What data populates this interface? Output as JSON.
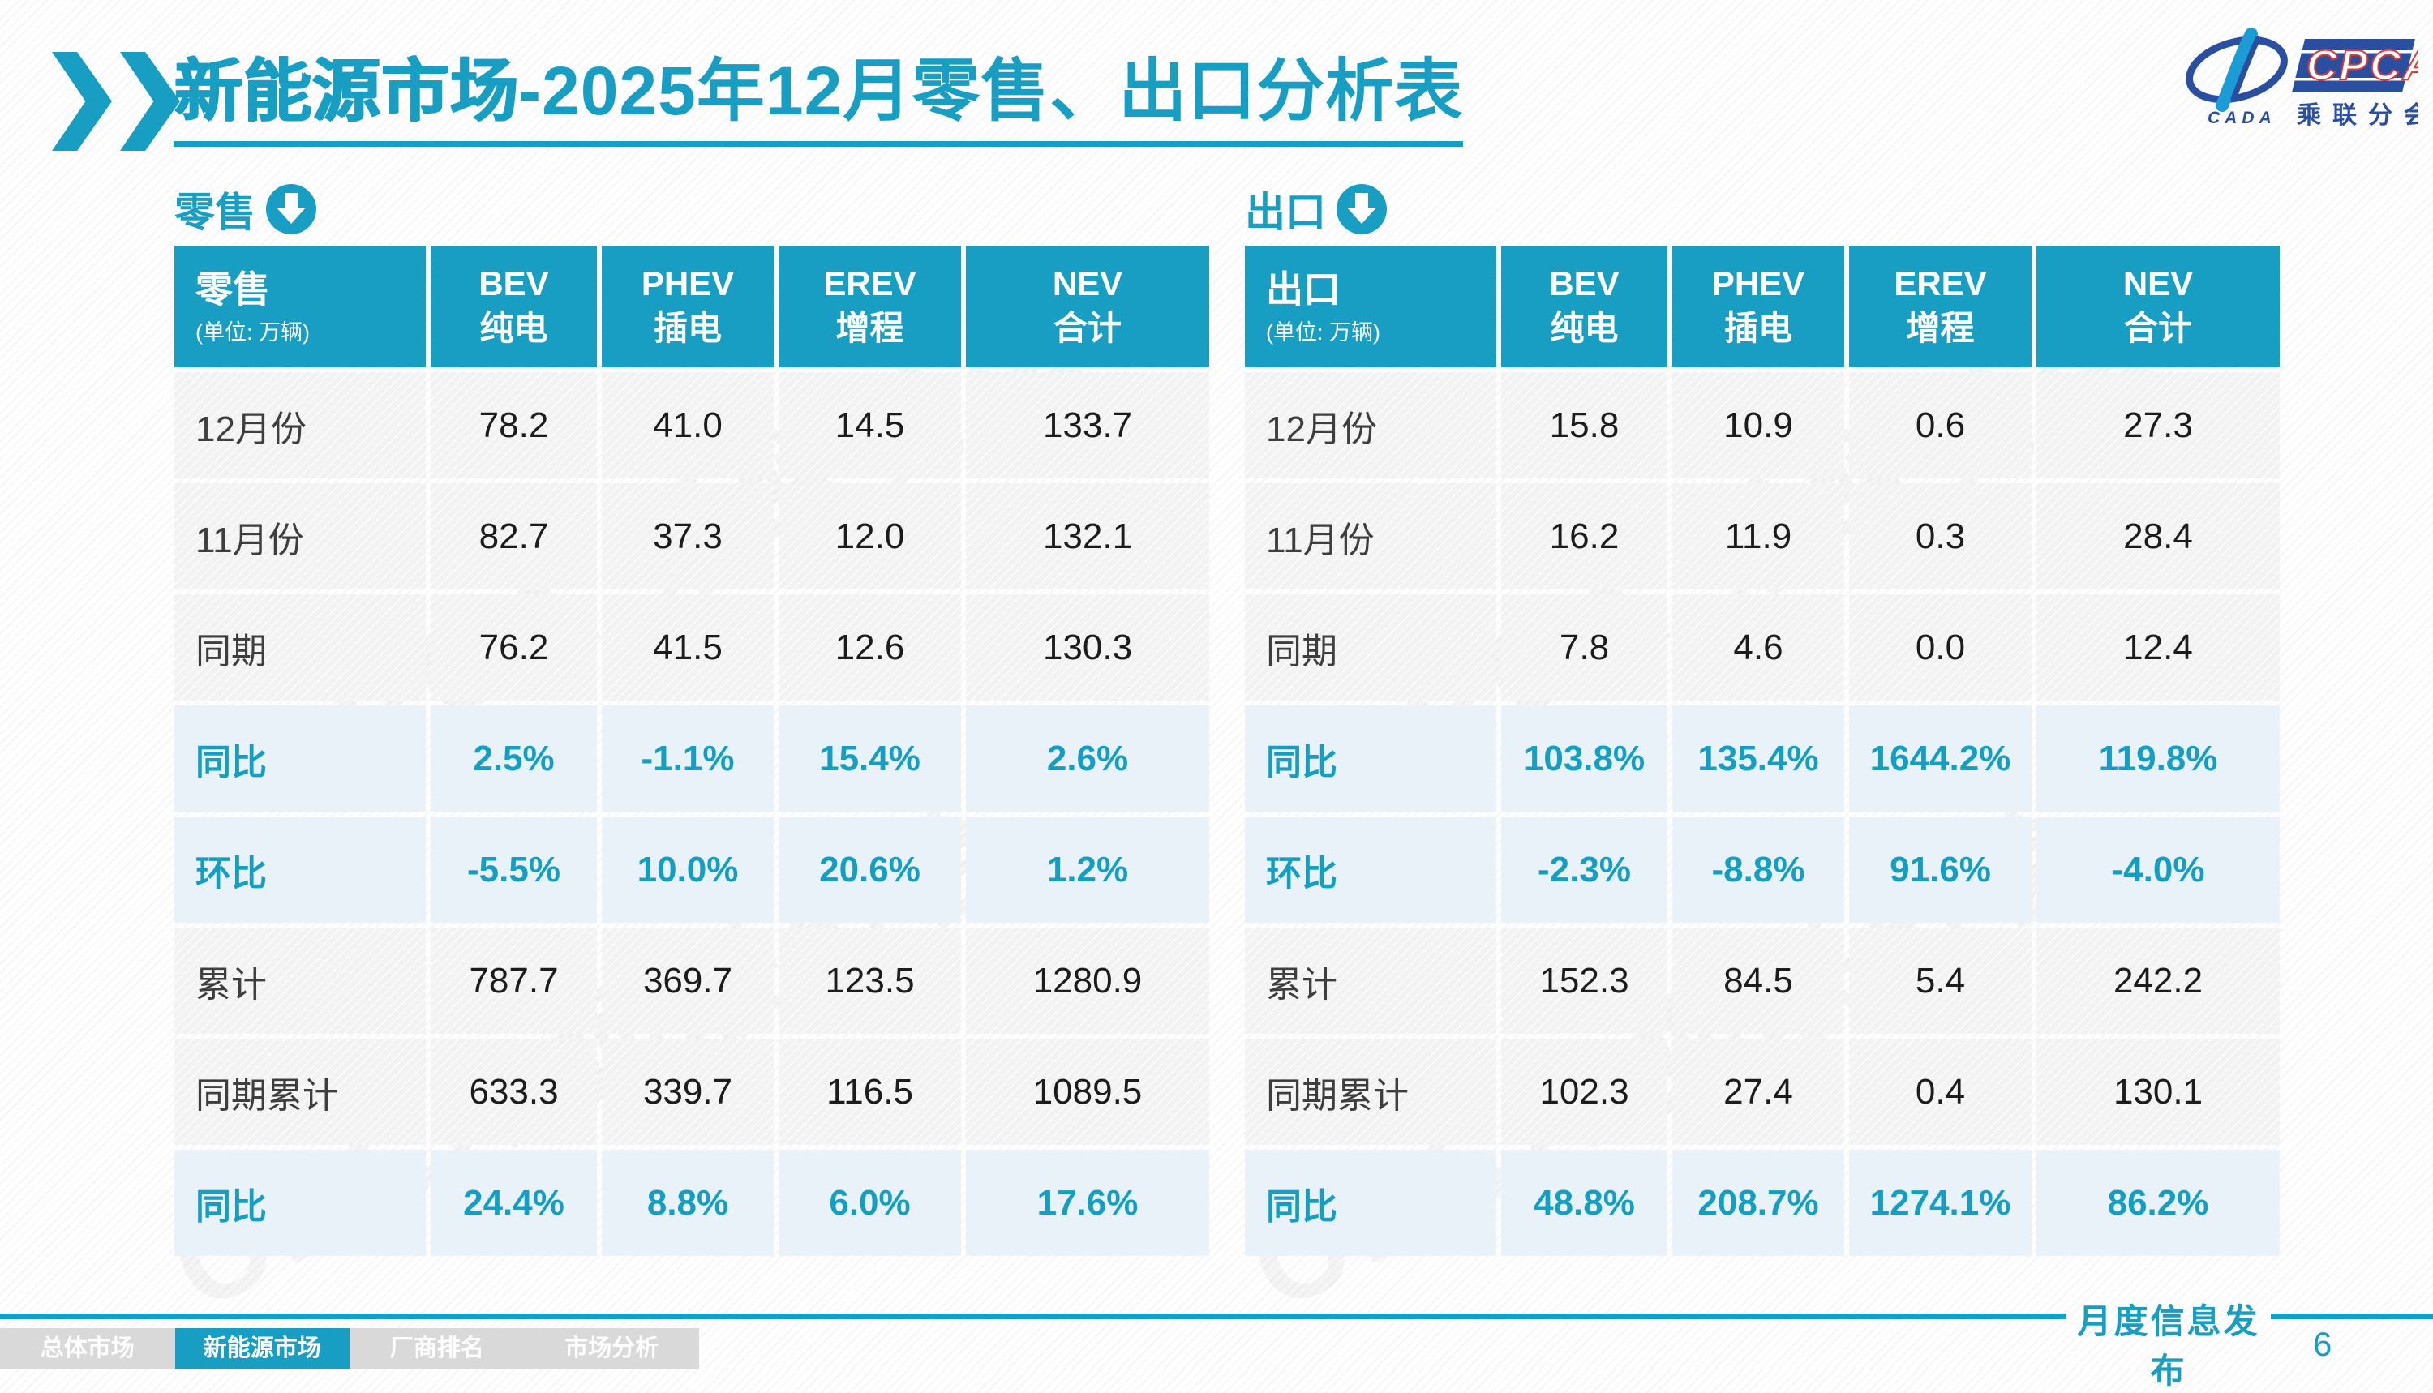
{
  "slide": {
    "title_strong": "新能源市场",
    "title_rest": "-2025年12月零售、出口分析表",
    "footer_stamp": "月度信息发布",
    "page_number": "6"
  },
  "accent_color": "#189EC2",
  "logo": {
    "cpca": "CPCA",
    "cada": "CADA",
    "subtitle": "乘联分会"
  },
  "watermark": {
    "text": "CPCA 乘联分会"
  },
  "nav": {
    "items": [
      {
        "label": "总体市场",
        "active": false
      },
      {
        "label": "新能源市场",
        "active": true
      },
      {
        "label": "厂商排名",
        "active": false
      },
      {
        "label": "市场分析",
        "active": false
      }
    ]
  },
  "tables": [
    {
      "id": "retail",
      "section_label": "零售",
      "header": {
        "title": "零售",
        "unit": "(单位: 万辆)",
        "columns": [
          [
            "BEV",
            "纯电"
          ],
          [
            "PHEV",
            "插电"
          ],
          [
            "EREV",
            "增程"
          ],
          [
            "NEV",
            "合计"
          ]
        ]
      },
      "rows": [
        {
          "label": "12月份",
          "type": "value",
          "values": [
            "78.2",
            "41.0",
            "14.5",
            "133.7"
          ]
        },
        {
          "label": "11月份",
          "type": "value",
          "values": [
            "82.7",
            "37.3",
            "12.0",
            "132.1"
          ]
        },
        {
          "label": "同期",
          "type": "value",
          "values": [
            "76.2",
            "41.5",
            "12.6",
            "130.3"
          ]
        },
        {
          "label": "同比",
          "type": "percent",
          "values": [
            "2.5%",
            "-1.1%",
            "15.4%",
            "2.6%"
          ]
        },
        {
          "label": "环比",
          "type": "percent",
          "values": [
            "-5.5%",
            "10.0%",
            "20.6%",
            "1.2%"
          ]
        },
        {
          "label": "累计",
          "type": "value",
          "values": [
            "787.7",
            "369.7",
            "123.5",
            "1280.9"
          ]
        },
        {
          "label": "同期累计",
          "type": "value",
          "values": [
            "633.3",
            "339.7",
            "116.5",
            "1089.5"
          ]
        },
        {
          "label": "同比",
          "type": "percent",
          "values": [
            "24.4%",
            "8.8%",
            "6.0%",
            "17.6%"
          ]
        }
      ]
    },
    {
      "id": "export",
      "section_label": "出口",
      "header": {
        "title": "出口",
        "unit": "(单位: 万辆)",
        "columns": [
          [
            "BEV",
            "纯电"
          ],
          [
            "PHEV",
            "插电"
          ],
          [
            "EREV",
            "增程"
          ],
          [
            "NEV",
            "合计"
          ]
        ]
      },
      "rows": [
        {
          "label": "12月份",
          "type": "value",
          "values": [
            "15.8",
            "10.9",
            "0.6",
            "27.3"
          ]
        },
        {
          "label": "11月份",
          "type": "value",
          "values": [
            "16.2",
            "11.9",
            "0.3",
            "28.4"
          ]
        },
        {
          "label": "同期",
          "type": "value",
          "values": [
            "7.8",
            "4.6",
            "0.0",
            "12.4"
          ]
        },
        {
          "label": "同比",
          "type": "percent",
          "values": [
            "103.8%",
            "135.4%",
            "1644.2%",
            "119.8%"
          ]
        },
        {
          "label": "环比",
          "type": "percent",
          "values": [
            "-2.3%",
            "-8.8%",
            "91.6%",
            "-4.0%"
          ]
        },
        {
          "label": "累计",
          "type": "value",
          "values": [
            "152.3",
            "84.5",
            "5.4",
            "242.2"
          ]
        },
        {
          "label": "同期累计",
          "type": "value",
          "values": [
            "102.3",
            "27.4",
            "0.4",
            "130.1"
          ]
        },
        {
          "label": "同比",
          "type": "percent",
          "values": [
            "48.8%",
            "208.7%",
            "1274.1%",
            "86.2%"
          ]
        }
      ]
    }
  ]
}
